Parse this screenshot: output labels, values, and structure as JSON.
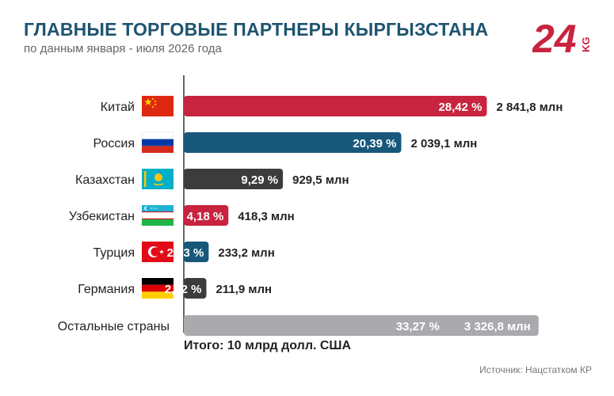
{
  "header": {
    "title": "ГЛАВНЫЕ ТОРГОВЫЕ ПАРТНЕРЫ КЫРГЫЗСТАНА",
    "subtitle": "по данным января - июля 2026 года",
    "logo_text": "24",
    "logo_suffix": "KG"
  },
  "colors": {
    "red": "#c8243f",
    "blue": "#17587a",
    "dark": "#3c3c3c",
    "gray": "#a9a9ae",
    "title": "#1e5470"
  },
  "chart_data": {
    "type": "bar",
    "orientation": "horizontal",
    "unit": "млн",
    "categories": [
      "Китай",
      "Россия",
      "Казахстан",
      "Узбекистан",
      "Турция",
      "Германия",
      "Остальные страны"
    ],
    "series": [
      {
        "values": [
          2841.8,
          2039.1,
          929.5,
          418.3,
          233.2,
          211.9,
          3326.8
        ],
        "percent_labels": [
          "28,42 %",
          "20,39 %",
          "9,29 %",
          "4,18 %",
          "2,33 %",
          "2,12 %",
          "33,27 %"
        ],
        "value_labels": [
          "2 841,8 млн",
          "2 039,1 млн",
          "929,5 млн",
          "418,3 млн",
          "233,2 млн",
          "211,9 млн",
          "3 326,8 млн"
        ]
      }
    ],
    "bar_colors": [
      "#c8243f",
      "#17587a",
      "#3c3c3c",
      "#c8243f",
      "#17587a",
      "#3c3c3c",
      "#a9a9ae"
    ],
    "flags": [
      "china",
      "russia",
      "kazakhstan",
      "uzbekistan",
      "turkey",
      "germany",
      ""
    ],
    "legend": "none",
    "grid": false
  },
  "footer": {
    "total": "Итого: 10 млрд долл. США",
    "source": "Источник: Нацстатком КР"
  }
}
